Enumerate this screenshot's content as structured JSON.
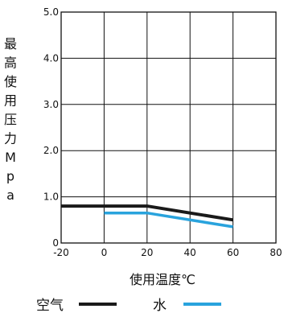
{
  "chart_data": {
    "type": "line",
    "title": "",
    "xlabel": "使用温度℃",
    "ylabel": "最高使用压力Mpa",
    "xlim": [
      -20,
      80
    ],
    "ylim": [
      0,
      5.0
    ],
    "x_ticks": [
      "-20",
      "0",
      "20",
      "40",
      "60",
      "80"
    ],
    "y_ticks": [
      "0",
      "1.0",
      "2.0",
      "3.0",
      "4.0",
      "5.0"
    ],
    "grid": true,
    "legend_position": "bottom",
    "series": [
      {
        "name": "空气",
        "color": "#1a1a1a",
        "x": [
          -20,
          20,
          60
        ],
        "y": [
          0.8,
          0.8,
          0.5
        ]
      },
      {
        "name": "水",
        "color": "#29a3dd",
        "x": [
          0,
          20,
          60
        ],
        "y": [
          0.65,
          0.65,
          0.35
        ]
      }
    ]
  }
}
